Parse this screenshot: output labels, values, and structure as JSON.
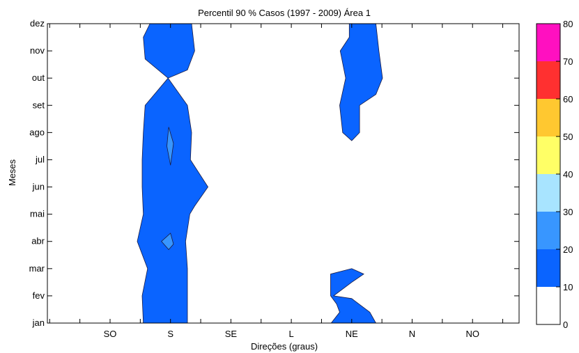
{
  "chart_data": {
    "type": "contour",
    "title": "Percentil 90 % Casos (1997 - 2009)  Área 1",
    "xlabel": "Direções (graus)",
    "ylabel": "Meses",
    "x_categories": [
      "SO",
      "S",
      "SE",
      "L",
      "NE",
      "N",
      "NO"
    ],
    "y_categories": [
      "jan",
      "fev",
      "mar",
      "abr",
      "mai",
      "jun",
      "jul",
      "ago",
      "set",
      "out",
      "nov",
      "dez"
    ],
    "colorbar": {
      "ticks": [
        "0",
        "10",
        "20",
        "30",
        "40",
        "50",
        "60",
        "70",
        "80"
      ],
      "levels": [
        {
          "from": 0,
          "to": 10,
          "color": "#ffffff"
        },
        {
          "from": 10,
          "to": 20,
          "color": "#0a64ff"
        },
        {
          "from": 20,
          "to": 30,
          "color": "#3896ff"
        },
        {
          "from": 30,
          "to": 40,
          "color": "#a8e4ff"
        },
        {
          "from": 40,
          "to": 50,
          "color": "#ffff66"
        },
        {
          "from": 50,
          "to": 60,
          "color": "#ffc830"
        },
        {
          "from": 60,
          "to": 70,
          "color": "#ff3030"
        },
        {
          "from": 70,
          "to": 80,
          "color": "#ff10c0"
        }
      ]
    },
    "regions": [
      {
        "name": "s-band-upper",
        "level": "10-20",
        "color": "#0a64ff",
        "points": [
          [
            -0.34,
            11.0
          ],
          [
            0.35,
            11.0
          ],
          [
            0.4,
            10.0
          ],
          [
            0.28,
            9.3
          ],
          [
            -0.04,
            9.0
          ],
          [
            -0.42,
            9.7
          ],
          [
            -0.45,
            10.5
          ]
        ]
      },
      {
        "name": "s-band-lower",
        "level": "10-20",
        "color": "#0a64ff",
        "points": [
          [
            0.28,
            0.0
          ],
          [
            -0.45,
            0.0
          ],
          [
            -0.47,
            1.0
          ],
          [
            -0.38,
            2.0
          ],
          [
            -0.55,
            3.0
          ],
          [
            -0.45,
            4.0
          ],
          [
            -0.47,
            5.0
          ],
          [
            -0.47,
            6.0
          ],
          [
            -0.45,
            7.0
          ],
          [
            -0.42,
            8.0
          ],
          [
            -0.04,
            9.0
          ],
          [
            0.28,
            8.0
          ],
          [
            0.35,
            7.0
          ],
          [
            0.33,
            6.0
          ],
          [
            0.62,
            5.0
          ],
          [
            0.4,
            4.3
          ],
          [
            0.32,
            4.0
          ],
          [
            0.25,
            3.0
          ],
          [
            0.28,
            2.0
          ],
          [
            0.28,
            1.0
          ]
        ]
      },
      {
        "name": "s-core-apr",
        "level": "20-30",
        "color": "#3896ff",
        "points": [
          [
            -0.15,
            3.0
          ],
          [
            0.0,
            3.3
          ],
          [
            0.05,
            2.9
          ],
          [
            -0.03,
            2.7
          ]
        ]
      },
      {
        "name": "s-thin-ago",
        "level": "20-30",
        "color": "#3896ff",
        "points": [
          [
            0.0,
            5.8
          ],
          [
            0.05,
            6.6
          ],
          [
            -0.03,
            7.2
          ],
          [
            -0.06,
            6.5
          ]
        ]
      },
      {
        "name": "ne-upper",
        "level": "10-20",
        "color": "#0a64ff",
        "points": [
          [
            -0.04,
            11.0
          ],
          [
            0.4,
            11.0
          ],
          [
            0.45,
            10.0
          ],
          [
            0.51,
            9.0
          ],
          [
            0.4,
            8.4
          ],
          [
            0.13,
            8.0
          ],
          [
            0.13,
            7.0
          ],
          [
            0.0,
            6.7
          ],
          [
            -0.15,
            7.0
          ],
          [
            -0.2,
            8.0
          ],
          [
            -0.1,
            9.0
          ],
          [
            -0.19,
            10.0
          ],
          [
            -0.04,
            10.5
          ]
        ]
      },
      {
        "name": "ne-lower",
        "level": "10-20",
        "color": "#0a64ff",
        "points": [
          [
            -0.34,
            0.0
          ],
          [
            0.4,
            0.0
          ],
          [
            0.3,
            0.4
          ],
          [
            0.0,
            0.9
          ],
          [
            -0.3,
            1.0
          ],
          [
            0.0,
            1.5
          ],
          [
            0.2,
            1.8
          ],
          [
            0.0,
            2.0
          ],
          [
            -0.35,
            1.8
          ],
          [
            -0.35,
            1.0
          ],
          [
            -0.25,
            0.7
          ],
          [
            -0.2,
            0.4
          ]
        ]
      }
    ]
  }
}
